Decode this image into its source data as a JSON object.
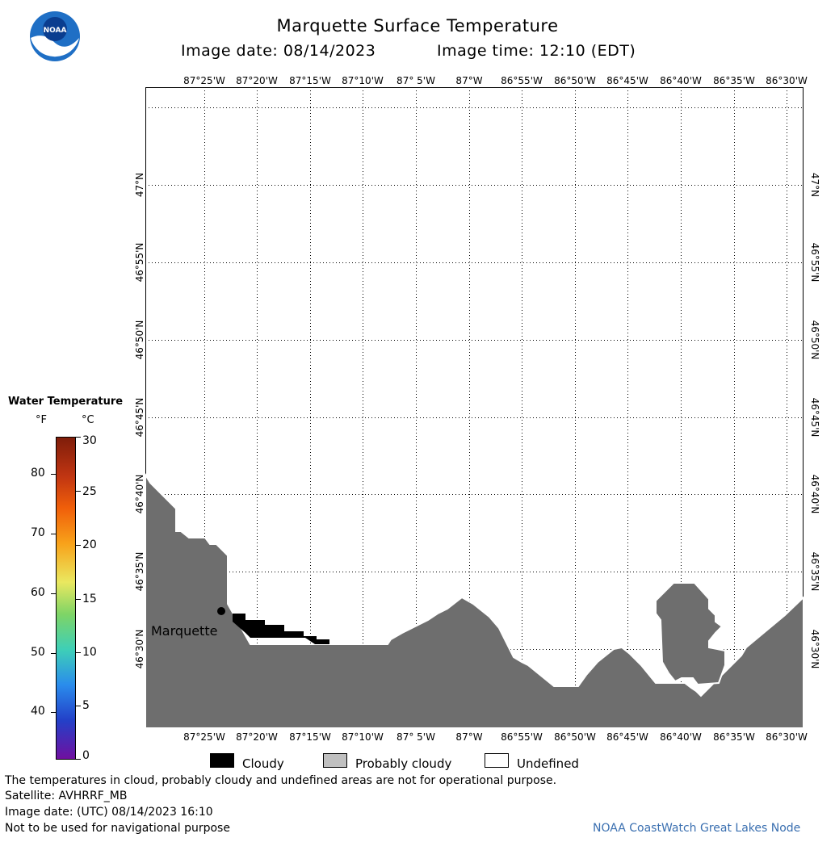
{
  "header": {
    "title": "Marquette Surface Temperature",
    "image_date": "Image date: 08/14/2023",
    "image_time": "Image time: 12:10 (EDT)"
  },
  "logo": {
    "text": "NOAA",
    "icon": "noaa-logo-icon"
  },
  "map": {
    "lon_labels": [
      "87°25'W",
      "87°20'W",
      "87°15'W",
      "87°10'W",
      "87° 5'W",
      "87°W",
      "86°55'W",
      "86°50'W",
      "86°45'W",
      "86°40'W",
      "86°35'W",
      "86°30'W"
    ],
    "lat_labels": [
      "47°N",
      "46°55'N",
      "46°50'N",
      "46°45'N",
      "46°40'N",
      "46°35'N",
      "46°30'N"
    ],
    "place_label": "Marquette",
    "colors": {
      "land": "#6e6e6e",
      "cloud": "#000000",
      "grid": "#000000"
    }
  },
  "legend": {
    "title": "Water Temperature",
    "unit_f": "°F",
    "unit_c": "°C",
    "f_ticks": [
      "80",
      "70",
      "60",
      "50",
      "40"
    ],
    "c_ticks": [
      "30",
      "25",
      "20",
      "15",
      "10",
      "5",
      "0"
    ]
  },
  "key": {
    "cloudy": "Cloudy",
    "probably_cloudy": "Probably cloudy",
    "undefined": "Undefined",
    "colors": {
      "cloudy": "#000000",
      "probably_cloudy": "#c0c0c0",
      "undefined": "#ffffff"
    }
  },
  "footer": {
    "line1": "The temperatures in cloud, probably cloudy and undefined areas are not for operational purpose.",
    "line2": "Satellite: AVHRRF_MB",
    "line3": "Image date: (UTC) 08/14/2023  16:10",
    "line4": "Not to be used for navigational purpose",
    "credit": "NOAA CoastWatch Great Lakes Node"
  }
}
